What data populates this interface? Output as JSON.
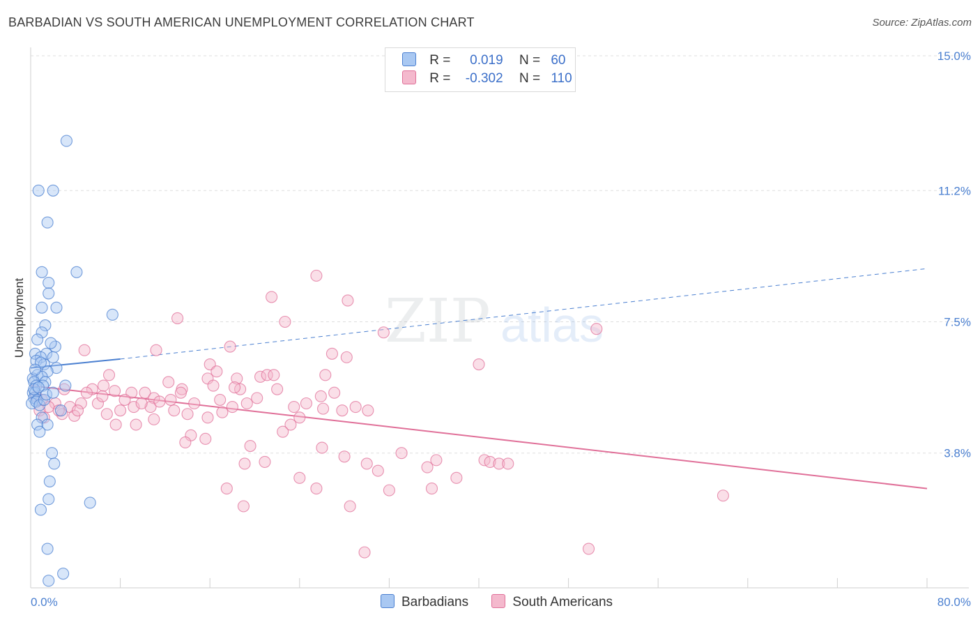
{
  "title": "BARBADIAN VS SOUTH AMERICAN UNEMPLOYMENT CORRELATION CHART",
  "source": "Source: ZipAtlas.com",
  "colors": {
    "blue": "#4a7fd0",
    "blue_fill": "#a9c8f2",
    "pink": "#e06f98",
    "pink_fill": "#f4b9cd",
    "axis_text": "#4a7fd0"
  },
  "legend": {
    "rows": [
      {
        "r_label": "R =",
        "r_value": "0.019",
        "n_label": "N =",
        "n_value": "60",
        "swatch": "blue"
      },
      {
        "r_label": "R =",
        "r_value": "-0.302",
        "n_label": "N =",
        "n_value": "110",
        "swatch": "pink"
      }
    ]
  },
  "bottom_legend": [
    "Barbadians",
    "South Americans"
  ],
  "chart_data": {
    "type": "scatter",
    "ylabel": "Unemployment",
    "xlim": [
      0,
      80
    ],
    "ylim": [
      0,
      15
    ],
    "x_tick_labels": [
      "0.0%",
      "80.0%"
    ],
    "y_tick_labels": [
      "15.0%",
      "11.2%",
      "7.5%",
      "3.8%"
    ],
    "y_ticks": [
      15.0,
      11.2,
      7.5,
      3.8
    ],
    "grid": true,
    "series": [
      {
        "name": "Barbadians",
        "color": "#4a7fd0",
        "trend": {
          "x": [
            0,
            8
          ],
          "y": [
            6.2,
            6.45
          ],
          "dashed_to_x": 80,
          "dashed_end_y": 9.0
        },
        "points": [
          [
            3.2,
            12.6
          ],
          [
            0.7,
            11.2
          ],
          [
            2.0,
            11.2
          ],
          [
            1.5,
            10.3
          ],
          [
            4.1,
            8.9
          ],
          [
            1.0,
            8.9
          ],
          [
            1.6,
            8.6
          ],
          [
            1.6,
            8.3
          ],
          [
            1.0,
            7.9
          ],
          [
            2.3,
            7.9
          ],
          [
            7.3,
            7.7
          ],
          [
            1.3,
            7.4
          ],
          [
            1.0,
            7.2
          ],
          [
            0.6,
            7.0
          ],
          [
            2.2,
            6.8
          ],
          [
            0.4,
            6.6
          ],
          [
            1.4,
            6.6
          ],
          [
            0.9,
            6.5
          ],
          [
            2.0,
            6.5
          ],
          [
            0.5,
            6.4
          ],
          [
            1.2,
            6.3
          ],
          [
            2.3,
            6.2
          ],
          [
            0.6,
            6.0
          ],
          [
            1.5,
            6.1
          ],
          [
            0.2,
            5.9
          ],
          [
            1.0,
            5.95
          ],
          [
            0.3,
            5.8
          ],
          [
            1.3,
            5.8
          ],
          [
            0.5,
            5.7
          ],
          [
            1.1,
            5.7
          ],
          [
            3.1,
            5.7
          ],
          [
            0.2,
            5.5
          ],
          [
            0.4,
            5.5
          ],
          [
            0.3,
            5.35
          ],
          [
            0.6,
            5.3
          ],
          [
            0.1,
            5.2
          ],
          [
            0.5,
            5.25
          ],
          [
            0.8,
            5.15
          ],
          [
            1.2,
            5.3
          ],
          [
            2.7,
            5.0
          ],
          [
            1.0,
            4.8
          ],
          [
            0.6,
            4.6
          ],
          [
            1.5,
            4.6
          ],
          [
            0.8,
            4.4
          ],
          [
            1.9,
            3.8
          ],
          [
            2.1,
            3.5
          ],
          [
            1.7,
            3.0
          ],
          [
            1.6,
            2.5
          ],
          [
            5.3,
            2.4
          ],
          [
            0.9,
            2.2
          ],
          [
            1.5,
            1.1
          ],
          [
            2.9,
            0.4
          ],
          [
            1.6,
            0.2
          ],
          [
            0.3,
            5.6
          ],
          [
            0.7,
            5.65
          ],
          [
            1.4,
            5.45
          ],
          [
            2.0,
            5.5
          ],
          [
            0.9,
            6.35
          ],
          [
            0.4,
            6.15
          ],
          [
            1.8,
            6.9
          ]
        ]
      },
      {
        "name": "South Americans",
        "color": "#e06f98",
        "trend": {
          "x": [
            0,
            80
          ],
          "y": [
            5.7,
            2.8
          ]
        },
        "points": [
          [
            25.5,
            8.8
          ],
          [
            21.5,
            8.2
          ],
          [
            28.3,
            8.1
          ],
          [
            13.1,
            7.6
          ],
          [
            22.7,
            7.5
          ],
          [
            31.5,
            7.2
          ],
          [
            50.5,
            7.3
          ],
          [
            17.8,
            6.8
          ],
          [
            11.2,
            6.7
          ],
          [
            4.8,
            6.7
          ],
          [
            26.9,
            6.6
          ],
          [
            28.2,
            6.5
          ],
          [
            40.0,
            6.3
          ],
          [
            16.0,
            6.3
          ],
          [
            16.6,
            6.1
          ],
          [
            7.0,
            6.0
          ],
          [
            26.3,
            6.0
          ],
          [
            20.5,
            5.95
          ],
          [
            21.1,
            6.0
          ],
          [
            21.7,
            6.0
          ],
          [
            12.3,
            5.8
          ],
          [
            15.8,
            5.9
          ],
          [
            18.4,
            5.9
          ],
          [
            16.3,
            5.7
          ],
          [
            18.7,
            5.6
          ],
          [
            18.2,
            5.65
          ],
          [
            13.5,
            5.6
          ],
          [
            10.2,
            5.5
          ],
          [
            22.0,
            5.6
          ],
          [
            27.1,
            5.5
          ],
          [
            5.5,
            5.6
          ],
          [
            7.5,
            5.55
          ],
          [
            9.0,
            5.5
          ],
          [
            6.5,
            5.7
          ],
          [
            3.0,
            5.6
          ],
          [
            11.0,
            5.35
          ],
          [
            12.5,
            5.3
          ],
          [
            14.6,
            5.2
          ],
          [
            16.9,
            5.3
          ],
          [
            19.3,
            5.2
          ],
          [
            10.7,
            5.1
          ],
          [
            9.2,
            5.1
          ],
          [
            8.0,
            5.0
          ],
          [
            6.0,
            5.2
          ],
          [
            4.5,
            5.2
          ],
          [
            3.5,
            5.1
          ],
          [
            2.2,
            5.2
          ],
          [
            1.6,
            5.1
          ],
          [
            1.0,
            5.3
          ],
          [
            0.8,
            5.0
          ],
          [
            1.2,
            4.8
          ],
          [
            2.8,
            4.9
          ],
          [
            3.9,
            4.85
          ],
          [
            6.8,
            4.9
          ],
          [
            7.6,
            4.6
          ],
          [
            9.4,
            4.6
          ],
          [
            11.0,
            4.75
          ],
          [
            12.8,
            5.0
          ],
          [
            14.0,
            4.9
          ],
          [
            15.8,
            4.8
          ],
          [
            17.1,
            4.95
          ],
          [
            18.0,
            5.1
          ],
          [
            23.5,
            5.1
          ],
          [
            24.0,
            4.8
          ],
          [
            23.2,
            4.6
          ],
          [
            22.5,
            4.4
          ],
          [
            26.1,
            5.05
          ],
          [
            27.8,
            5.0
          ],
          [
            29.0,
            5.1
          ],
          [
            30.1,
            5.0
          ],
          [
            15.6,
            4.2
          ],
          [
            14.3,
            4.3
          ],
          [
            13.8,
            4.1
          ],
          [
            19.6,
            4.0
          ],
          [
            26.0,
            3.95
          ],
          [
            28.0,
            3.7
          ],
          [
            30.0,
            3.5
          ],
          [
            31.0,
            3.3
          ],
          [
            33.1,
            3.8
          ],
          [
            35.4,
            3.4
          ],
          [
            36.2,
            3.6
          ],
          [
            38.0,
            3.1
          ],
          [
            40.5,
            3.6
          ],
          [
            41.0,
            3.55
          ],
          [
            41.8,
            3.5
          ],
          [
            42.6,
            3.5
          ],
          [
            19.1,
            3.5
          ],
          [
            20.9,
            3.55
          ],
          [
            24.0,
            3.1
          ],
          [
            25.5,
            2.8
          ],
          [
            32.0,
            2.75
          ],
          [
            35.8,
            2.8
          ],
          [
            17.5,
            2.8
          ],
          [
            19.0,
            2.3
          ],
          [
            28.5,
            2.3
          ],
          [
            29.8,
            1.0
          ],
          [
            49.8,
            1.1
          ],
          [
            61.8,
            2.6
          ],
          [
            5.0,
            5.5
          ],
          [
            8.4,
            5.3
          ],
          [
            13.4,
            5.5
          ],
          [
            20.2,
            5.35
          ],
          [
            4.2,
            5.0
          ],
          [
            2.5,
            5.0
          ],
          [
            0.5,
            5.4
          ],
          [
            6.4,
            5.4
          ],
          [
            11.5,
            5.25
          ],
          [
            9.9,
            5.2
          ],
          [
            24.6,
            5.2
          ],
          [
            25.9,
            5.4
          ]
        ]
      }
    ]
  }
}
